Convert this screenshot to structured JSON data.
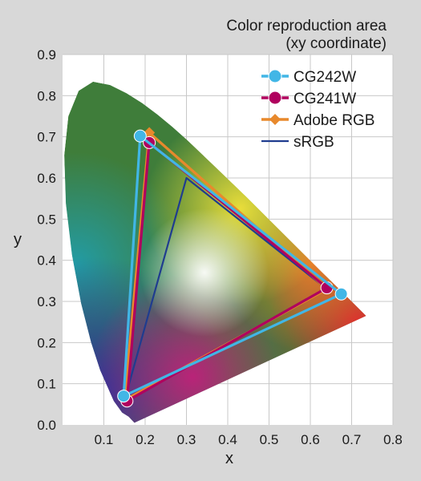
{
  "chart_data": {
    "type": "scatter",
    "title_lines": [
      "Color reproduction area",
      "(xy coordinate)"
    ],
    "xlabel": "x",
    "ylabel": "y",
    "xlim": [
      0,
      0.8
    ],
    "ylim": [
      0,
      0.9
    ],
    "x_ticks": [
      "0.1",
      "0.2",
      "0.3",
      "0.4",
      "0.5",
      "0.6",
      "0.7",
      "0.8"
    ],
    "y_ticks": [
      "0.0",
      "0.1",
      "0.2",
      "0.3",
      "0.4",
      "0.5",
      "0.6",
      "0.7",
      "0.8",
      "0.9"
    ],
    "grid": true,
    "legend_position": "top-right",
    "background_locus": [
      [
        0.174,
        0.005
      ],
      [
        0.16,
        0.02
      ],
      [
        0.144,
        0.03
      ],
      [
        0.124,
        0.058
      ],
      [
        0.091,
        0.133
      ],
      [
        0.069,
        0.201
      ],
      [
        0.045,
        0.295
      ],
      [
        0.023,
        0.413
      ],
      [
        0.008,
        0.538
      ],
      [
        0.004,
        0.655
      ],
      [
        0.014,
        0.75
      ],
      [
        0.039,
        0.812
      ],
      [
        0.074,
        0.834
      ],
      [
        0.115,
        0.826
      ],
      [
        0.155,
        0.806
      ],
      [
        0.193,
        0.782
      ],
      [
        0.23,
        0.754
      ],
      [
        0.266,
        0.724
      ],
      [
        0.302,
        0.692
      ],
      [
        0.373,
        0.624
      ],
      [
        0.444,
        0.555
      ],
      [
        0.512,
        0.487
      ],
      [
        0.575,
        0.424
      ],
      [
        0.627,
        0.372
      ],
      [
        0.669,
        0.331
      ],
      [
        0.701,
        0.299
      ],
      [
        0.735,
        0.265
      ],
      [
        0.174,
        0.005
      ]
    ],
    "series": [
      {
        "name": "CG242W",
        "color": "#41b6e6",
        "marker": "circle",
        "points": [
          [
            0.675,
            0.318
          ],
          [
            0.188,
            0.702
          ],
          [
            0.148,
            0.07
          ]
        ]
      },
      {
        "name": "CG241W",
        "color": "#b0005e",
        "marker": "circle",
        "points": [
          [
            0.64,
            0.333
          ],
          [
            0.21,
            0.686
          ],
          [
            0.156,
            0.058
          ]
        ]
      },
      {
        "name": "Adobe RGB",
        "color": "#e8892c",
        "marker": "diamond",
        "points": [
          [
            0.64,
            0.33
          ],
          [
            0.21,
            0.71
          ],
          [
            0.15,
            0.06
          ]
        ]
      },
      {
        "name": "sRGB",
        "color": "#1f3c8f",
        "marker": "none",
        "points": [
          [
            0.64,
            0.33
          ],
          [
            0.3,
            0.6
          ],
          [
            0.15,
            0.06
          ]
        ]
      }
    ]
  }
}
